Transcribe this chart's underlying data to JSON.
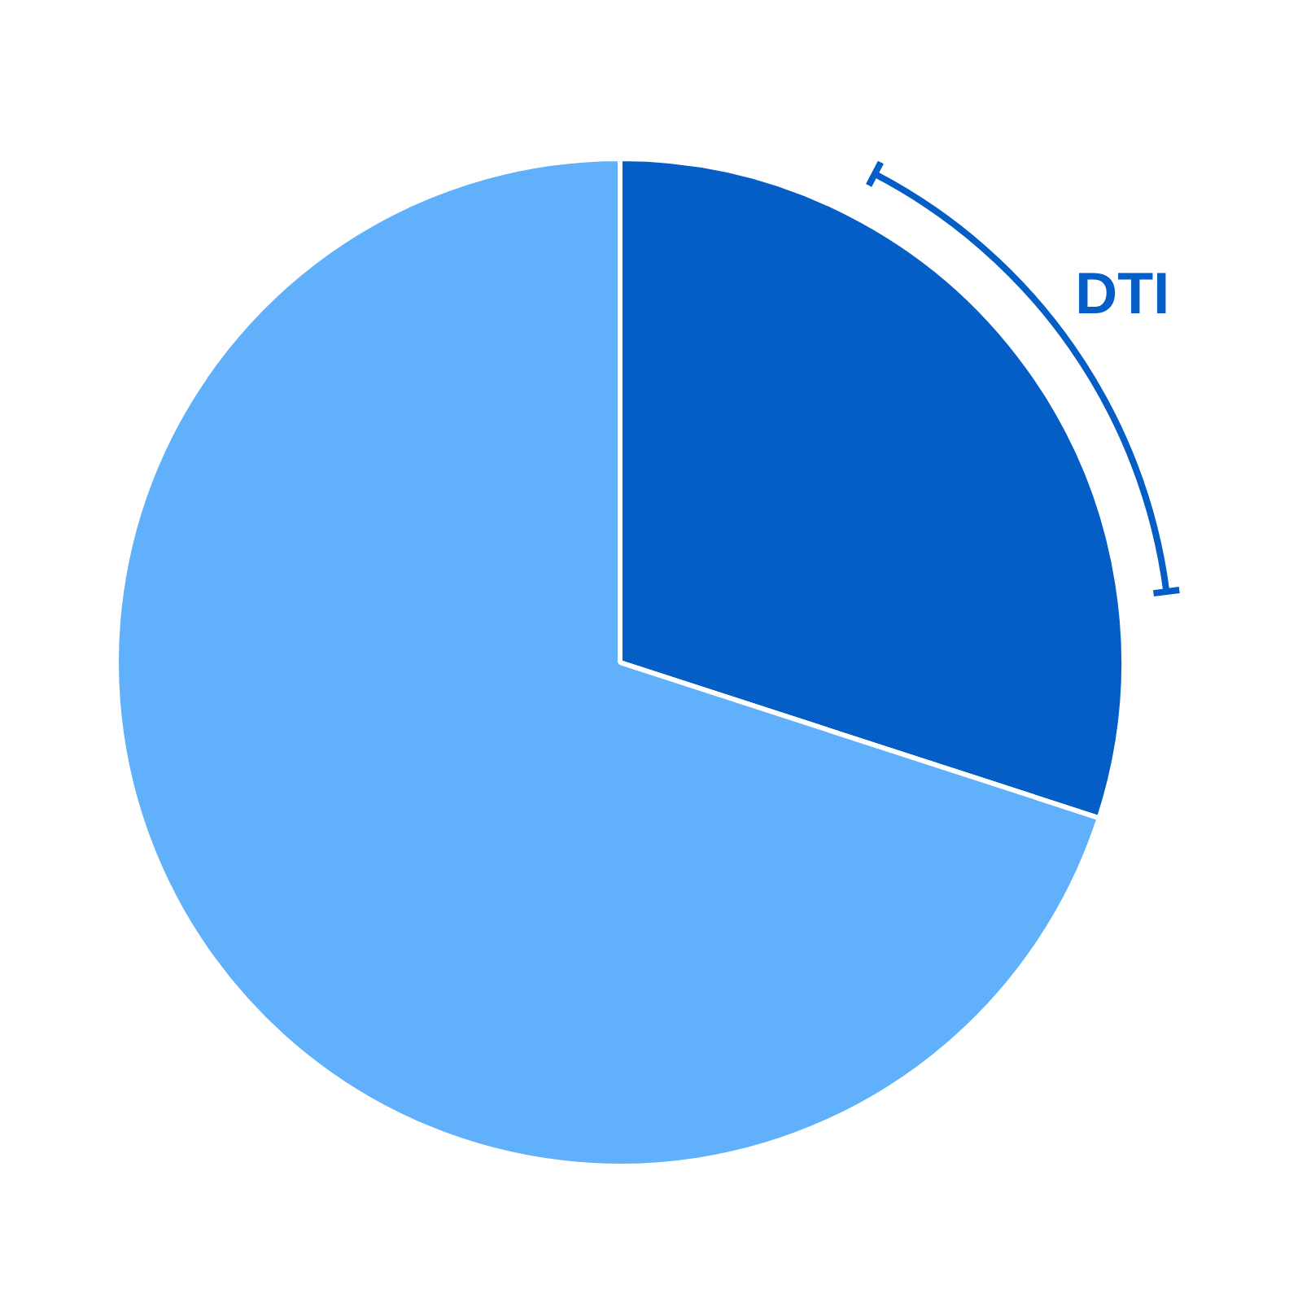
{
  "chart_data": {
    "type": "pie",
    "categories": [
      "DTI",
      null
    ],
    "values": [
      30,
      70
    ],
    "colors": [
      "#055ec6",
      "#60b0fb"
    ]
  }
}
